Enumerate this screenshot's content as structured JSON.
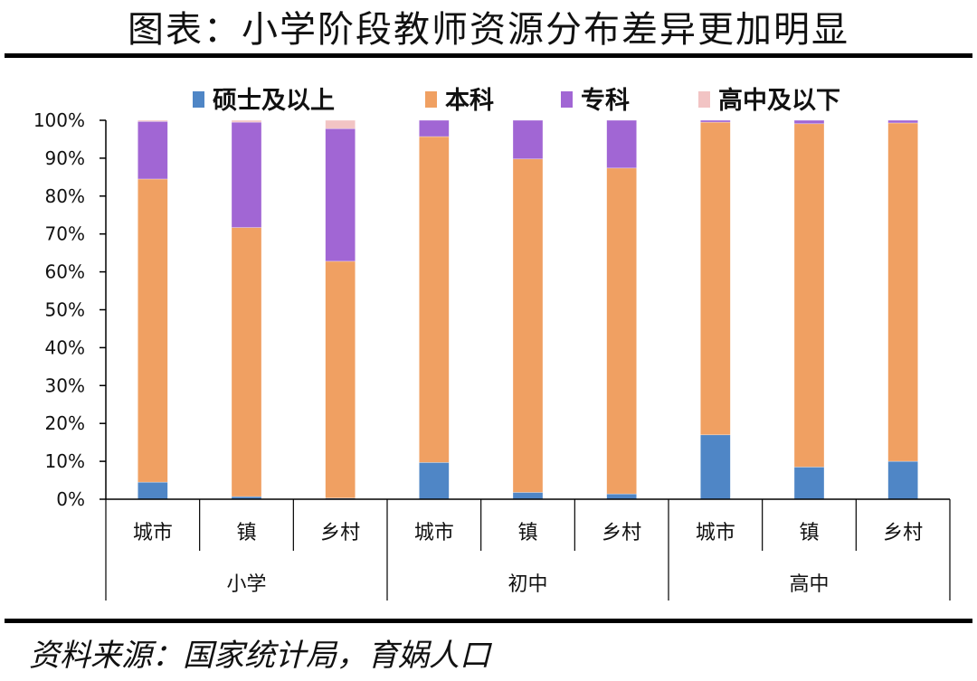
{
  "title": "图表：小学阶段教师资源分布差异更加明显",
  "source": "资料来源：国家统计局，育娲人口",
  "chart_data": {
    "type": "bar",
    "stacked": true,
    "categories": [
      "城市",
      "镇",
      "乡村",
      "城市",
      "镇",
      "乡村",
      "城市",
      "镇",
      "乡村"
    ],
    "groups": [
      {
        "label": "小学",
        "count": 3
      },
      {
        "label": "初中",
        "count": 3
      },
      {
        "label": "高中",
        "count": 3
      }
    ],
    "series": [
      {
        "name": "硕士及以上",
        "color": "#4f86c6",
        "values": [
          4.5,
          0.7,
          0.3,
          9.7,
          1.8,
          1.4,
          17.0,
          8.5,
          10.0
        ]
      },
      {
        "name": "本科",
        "color": "#f0a062",
        "values": [
          80.0,
          71.0,
          62.5,
          86.0,
          88.0,
          86.0,
          82.5,
          90.6,
          89.3
        ]
      },
      {
        "name": "专科",
        "color": "#a166d4",
        "values": [
          15.2,
          27.8,
          35.0,
          4.3,
          10.2,
          12.6,
          0.5,
          0.9,
          0.7
        ]
      },
      {
        "name": "高中及以下",
        "color": "#f2c4c4",
        "values": [
          0.3,
          0.5,
          2.2,
          0.0,
          0.0,
          0.0,
          0.0,
          0.0,
          0.0
        ]
      }
    ],
    "yticks": [
      "0%",
      "10%",
      "20%",
      "30%",
      "40%",
      "50%",
      "60%",
      "70%",
      "80%",
      "90%",
      "100%"
    ],
    "ylim": [
      0,
      100
    ],
    "grid": false,
    "legend": "top"
  }
}
